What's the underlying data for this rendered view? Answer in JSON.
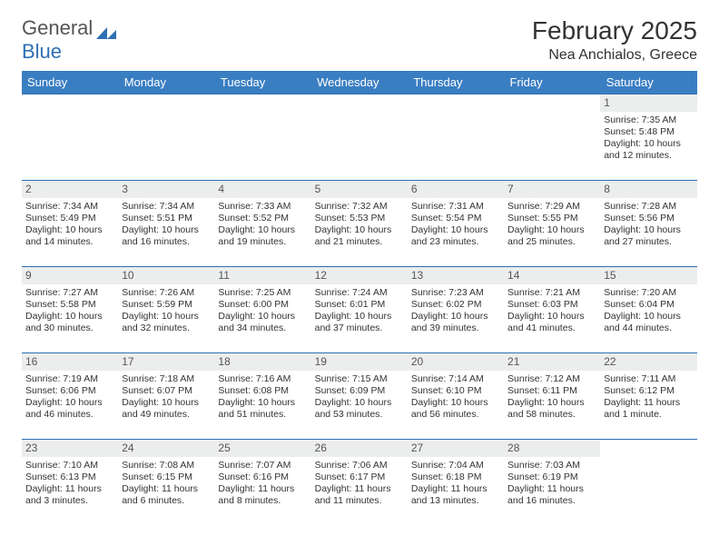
{
  "brand": {
    "part1": "General",
    "part2": "Blue"
  },
  "title": "February 2025",
  "location": "Nea Anchialos, Greece",
  "colors": {
    "accent": "#3a7ec2",
    "rule": "#2f6fb4",
    "dayBg": "#eceded",
    "text": "#333"
  },
  "weekdays": [
    "Sunday",
    "Monday",
    "Tuesday",
    "Wednesday",
    "Thursday",
    "Friday",
    "Saturday"
  ],
  "grid": [
    [
      null,
      null,
      null,
      null,
      null,
      null,
      {
        "n": "1",
        "sr": "7:35 AM",
        "ss": "5:48 PM",
        "dl": "10 hours and 12 minutes."
      }
    ],
    [
      {
        "n": "2",
        "sr": "7:34 AM",
        "ss": "5:49 PM",
        "dl": "10 hours and 14 minutes."
      },
      {
        "n": "3",
        "sr": "7:34 AM",
        "ss": "5:51 PM",
        "dl": "10 hours and 16 minutes."
      },
      {
        "n": "4",
        "sr": "7:33 AM",
        "ss": "5:52 PM",
        "dl": "10 hours and 19 minutes."
      },
      {
        "n": "5",
        "sr": "7:32 AM",
        "ss": "5:53 PM",
        "dl": "10 hours and 21 minutes."
      },
      {
        "n": "6",
        "sr": "7:31 AM",
        "ss": "5:54 PM",
        "dl": "10 hours and 23 minutes."
      },
      {
        "n": "7",
        "sr": "7:29 AM",
        "ss": "5:55 PM",
        "dl": "10 hours and 25 minutes."
      },
      {
        "n": "8",
        "sr": "7:28 AM",
        "ss": "5:56 PM",
        "dl": "10 hours and 27 minutes."
      }
    ],
    [
      {
        "n": "9",
        "sr": "7:27 AM",
        "ss": "5:58 PM",
        "dl": "10 hours and 30 minutes."
      },
      {
        "n": "10",
        "sr": "7:26 AM",
        "ss": "5:59 PM",
        "dl": "10 hours and 32 minutes."
      },
      {
        "n": "11",
        "sr": "7:25 AM",
        "ss": "6:00 PM",
        "dl": "10 hours and 34 minutes."
      },
      {
        "n": "12",
        "sr": "7:24 AM",
        "ss": "6:01 PM",
        "dl": "10 hours and 37 minutes."
      },
      {
        "n": "13",
        "sr": "7:23 AM",
        "ss": "6:02 PM",
        "dl": "10 hours and 39 minutes."
      },
      {
        "n": "14",
        "sr": "7:21 AM",
        "ss": "6:03 PM",
        "dl": "10 hours and 41 minutes."
      },
      {
        "n": "15",
        "sr": "7:20 AM",
        "ss": "6:04 PM",
        "dl": "10 hours and 44 minutes."
      }
    ],
    [
      {
        "n": "16",
        "sr": "7:19 AM",
        "ss": "6:06 PM",
        "dl": "10 hours and 46 minutes."
      },
      {
        "n": "17",
        "sr": "7:18 AM",
        "ss": "6:07 PM",
        "dl": "10 hours and 49 minutes."
      },
      {
        "n": "18",
        "sr": "7:16 AM",
        "ss": "6:08 PM",
        "dl": "10 hours and 51 minutes."
      },
      {
        "n": "19",
        "sr": "7:15 AM",
        "ss": "6:09 PM",
        "dl": "10 hours and 53 minutes."
      },
      {
        "n": "20",
        "sr": "7:14 AM",
        "ss": "6:10 PM",
        "dl": "10 hours and 56 minutes."
      },
      {
        "n": "21",
        "sr": "7:12 AM",
        "ss": "6:11 PM",
        "dl": "10 hours and 58 minutes."
      },
      {
        "n": "22",
        "sr": "7:11 AM",
        "ss": "6:12 PM",
        "dl": "11 hours and 1 minute."
      }
    ],
    [
      {
        "n": "23",
        "sr": "7:10 AM",
        "ss": "6:13 PM",
        "dl": "11 hours and 3 minutes."
      },
      {
        "n": "24",
        "sr": "7:08 AM",
        "ss": "6:15 PM",
        "dl": "11 hours and 6 minutes."
      },
      {
        "n": "25",
        "sr": "7:07 AM",
        "ss": "6:16 PM",
        "dl": "11 hours and 8 minutes."
      },
      {
        "n": "26",
        "sr": "7:06 AM",
        "ss": "6:17 PM",
        "dl": "11 hours and 11 minutes."
      },
      {
        "n": "27",
        "sr": "7:04 AM",
        "ss": "6:18 PM",
        "dl": "11 hours and 13 minutes."
      },
      {
        "n": "28",
        "sr": "7:03 AM",
        "ss": "6:19 PM",
        "dl": "11 hours and 16 minutes."
      },
      null
    ]
  ],
  "labels": {
    "sunrise": "Sunrise: ",
    "sunset": "Sunset: ",
    "daylight": "Daylight: "
  }
}
